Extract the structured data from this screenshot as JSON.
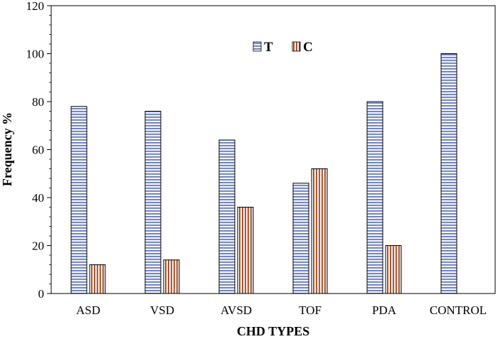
{
  "chart_data": {
    "type": "bar",
    "categories": [
      "ASD",
      "VSD",
      "AVSD",
      "TOF",
      "PDA",
      "CONTROL"
    ],
    "series": [
      {
        "name": "T",
        "values": [
          78,
          76,
          64,
          46,
          80,
          100
        ],
        "pattern": "horizontal-stripes",
        "color": "#b4c3ee"
      },
      {
        "name": "C",
        "values": [
          12,
          14,
          36,
          52,
          20,
          null
        ],
        "pattern": "vertical-stripes",
        "color": "#e9a27c"
      }
    ],
    "xlabel": "CHD TYPES",
    "ylabel": "Frequency %",
    "ylim": [
      0,
      120
    ],
    "yticks": [
      0,
      20,
      40,
      60,
      80,
      100,
      120
    ],
    "legend": {
      "position": "top-center"
    },
    "grid": false
  }
}
